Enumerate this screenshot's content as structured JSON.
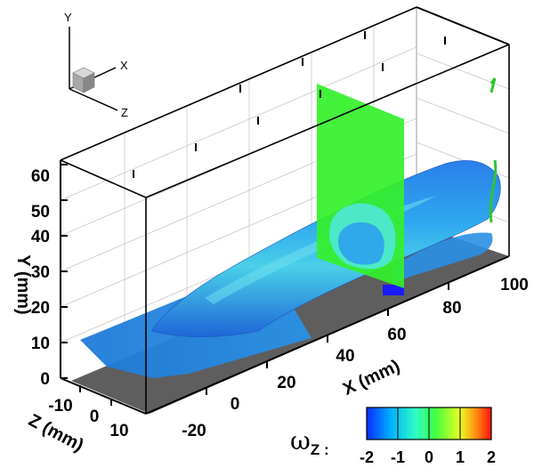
{
  "triad": {
    "y": "Y",
    "x": "X",
    "z": "Z"
  },
  "axes": {
    "y": {
      "label": "Y (mm)",
      "ticks": [
        "0",
        "10",
        "20",
        "30",
        "40",
        "50",
        "60"
      ]
    },
    "x": {
      "label": "X (mm)",
      "ticks": [
        "-20",
        "0",
        "20",
        "40",
        "60",
        "80",
        "100"
      ]
    },
    "z": {
      "label": "Z (mm)",
      "ticks": [
        "-10",
        "0",
        "10"
      ]
    }
  },
  "colorbar": {
    "symbol": "ω",
    "subscript": "Z",
    "suffix": " :",
    "ticks": [
      "-2",
      "-1",
      "0",
      "1",
      "2"
    ],
    "colors": [
      "#0a2cff",
      "#00b4ff",
      "#32ffb0",
      "#4cff2e",
      "#e8ff20",
      "#ff7a10",
      "#ff1a1a"
    ]
  }
}
